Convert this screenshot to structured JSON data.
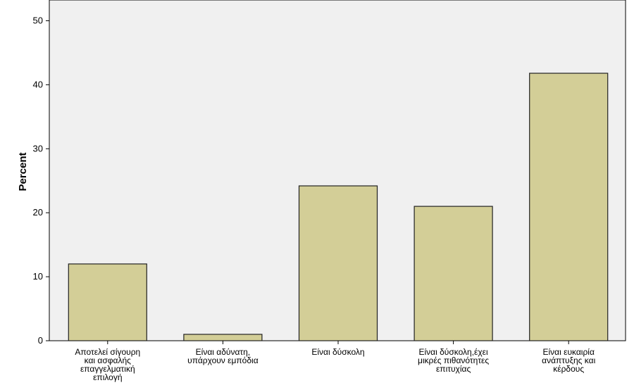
{
  "chart_data": {
    "type": "bar",
    "title": "",
    "xlabel": "",
    "ylabel": "Percent",
    "ylim": [
      0,
      52
    ],
    "yticks": [
      0,
      10,
      20,
      30,
      40,
      50
    ],
    "grid": false,
    "categories": [
      [
        "Αποτελεί σίγουρη",
        "και ασφαλής",
        "επαγγελματική",
        "επιλογή"
      ],
      [
        "Είναι αδύνατη,",
        "υπάρχουν εμπόδια"
      ],
      [
        "Είναι δύσκολη"
      ],
      [
        "Είναι δύσκολη,έχει",
        "μικρές πιθανότητες",
        "επιτυχίας"
      ],
      [
        "Είναι ευκαιρία",
        "ανάπτυξης και",
        "κέρδους"
      ]
    ],
    "values": [
      12.0,
      1.0,
      24.2,
      21.0,
      41.8
    ],
    "colors": {
      "bar_fill": "#d3ce97",
      "bar_stroke": "#222222",
      "plot_background": "#f0f0f0"
    }
  }
}
